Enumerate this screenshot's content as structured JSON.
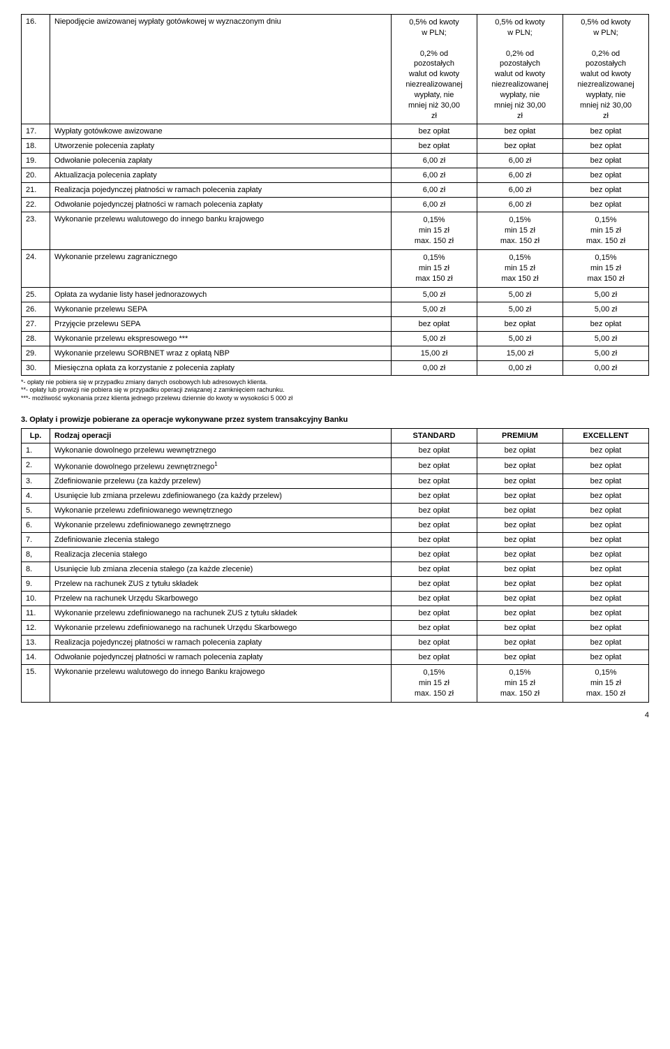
{
  "table1": {
    "rows": [
      {
        "n": "16.",
        "desc": "Niepodjęcie awizowanej wypłaty gotówkowej w wyznaczonym dniu",
        "c1": "0,5% od kwoty\nw PLN;\n\n0,2% od\npozostałych\nwalut od kwoty\nniezrealizowanej\nwypłaty, nie\nmniej niż 30,00\nzł",
        "c2": "0,5% od kwoty\nw PLN;\n\n0,2% od\npozostałych\nwalut od kwoty\nniezrealizowanej\nwypłaty, nie\nmniej niż 30,00\nzł",
        "c3": "0,5% od kwoty\nw PLN;\n\n0,2% od\npozostałych\nwalut od kwoty\nniezrealizowanej\nwypłaty, nie\nmniej niż 30,00\nzł"
      },
      {
        "n": "17.",
        "desc": "Wypłaty gotówkowe awizowane",
        "c1": "bez opłat",
        "c2": "bez opłat",
        "c3": "bez opłat"
      },
      {
        "n": "18.",
        "desc": "Utworzenie polecenia zapłaty",
        "c1": "bez opłat",
        "c2": "bez opłat",
        "c3": "bez opłat"
      },
      {
        "n": "19.",
        "desc": "Odwołanie polecenia zapłaty",
        "c1": "6,00 zł",
        "c2": "6,00 zł",
        "c3": "bez opłat"
      },
      {
        "n": "20.",
        "desc": "Aktualizacja polecenia zapłaty",
        "c1": "6,00 zł",
        "c2": "6,00 zł",
        "c3": "bez opłat"
      },
      {
        "n": "21.",
        "desc": "Realizacja pojedynczej płatności w ramach polecenia zapłaty",
        "c1": "6,00 zł",
        "c2": "6,00 zł",
        "c3": "bez opłat"
      },
      {
        "n": "22.",
        "desc": "Odwołanie pojedynczej płatności w ramach polecenia zapłaty",
        "c1": "6,00 zł",
        "c2": "6,00 zł",
        "c3": "bez opłat"
      },
      {
        "n": "23.",
        "desc": "Wykonanie przelewu walutowego do innego banku krajowego",
        "c1": "0,15%\nmin 15 zł\nmax. 150 zł",
        "c2": "0,15%\nmin 15 zł\nmax. 150 zł",
        "c3": "0,15%\nmin 15 zł\nmax. 150 zł"
      },
      {
        "n": "24.",
        "desc": "Wykonanie przelewu zagranicznego",
        "c1": "0,15%\nmin 15 zł\nmax 150 zł",
        "c2": "0,15%\nmin 15 zł\nmax 150 zł",
        "c3": "0,15%\nmin 15 zł\nmax 150 zł"
      },
      {
        "n": "25.",
        "desc": "Opłata za wydanie listy haseł jednorazowych",
        "c1": "5,00 zł",
        "c2": "5,00 zł",
        "c3": "5,00 zł"
      },
      {
        "n": "26.",
        "desc": "Wykonanie przelewu SEPA",
        "c1": "5,00 zł",
        "c2": "5,00 zł",
        "c3": "5,00 zł"
      },
      {
        "n": "27.",
        "desc": "Przyjęcie przelewu SEPA",
        "c1": "bez opłat",
        "c2": "bez opłat",
        "c3": "bez opłat"
      },
      {
        "n": "28.",
        "desc": "Wykonanie przelewu ekspresowego ***",
        "c1": "5,00 zł",
        "c2": "5,00 zł",
        "c3": "5,00 zł"
      },
      {
        "n": "29.",
        "desc": "Wykonanie przelewu  SORBNET wraz z opłatą NBP",
        "c1": "15,00 zł",
        "c2": "15,00 zł",
        "c3": "5,00 zł"
      },
      {
        "n": "30.",
        "desc": "Miesięczna opłata za korzystanie z polecenia zapłaty",
        "c1": "0,00 zł",
        "c2": "0,00 zł",
        "c3": "0,00 zł"
      }
    ]
  },
  "footnotes": [
    "*- opłaty nie pobiera się w przypadku zmiany danych osobowych lub adresowych klienta.",
    "**- opłaty lub prowizji nie pobiera się w przypadku operacji związanej z zamknięciem rachunku.",
    "***- możliwość wykonania przez klienta jednego przelewu dziennie do kwoty w wysokości 5 000 zł"
  ],
  "section3": {
    "title": "3. Opłaty i prowizje pobierane za operacje wykonywane przez system transakcyjny Banku",
    "headers": {
      "lp": "Lp.",
      "desc": "Rodzaj operacji",
      "c1": "STANDARD",
      "c2": "PREMIUM",
      "c3": "EXCELLENT"
    },
    "rows": [
      {
        "n": "1.",
        "desc": "Wykonanie dowolnego przelewu wewnętrznego",
        "c1": "bez opłat",
        "c2": "bez opłat",
        "c3": "bez opłat"
      },
      {
        "n": "2.",
        "desc": "Wykonanie dowolnego przelewu zewnętrznego",
        "sup": "1",
        "c1": "bez opłat",
        "c2": "bez opłat",
        "c3": "bez opłat"
      },
      {
        "n": "3.",
        "desc": "Zdefiniowanie przelewu (za każdy przelew)",
        "c1": "bez opłat",
        "c2": "bez opłat",
        "c3": "bez opłat"
      },
      {
        "n": "4.",
        "desc": "Usunięcie lub zmiana przelewu zdefiniowanego (za każdy przelew)",
        "c1": "bez opłat",
        "c2": "bez opłat",
        "c3": "bez opłat"
      },
      {
        "n": "5.",
        "desc": "Wykonanie przelewu zdefiniowanego wewnętrznego",
        "c1": "bez opłat",
        "c2": "bez opłat",
        "c3": "bez opłat"
      },
      {
        "n": "6.",
        "desc": "Wykonanie przelewu zdefiniowanego zewnętrznego",
        "c1": "bez opłat",
        "c2": "bez opłat",
        "c3": "bez opłat"
      },
      {
        "n": "7.",
        "desc": "Zdefiniowanie zlecenia stałego",
        "c1": "bez opłat",
        "c2": "bez opłat",
        "c3": "bez opłat"
      },
      {
        "n": "8,",
        "desc": "Realizacja zlecenia stałego",
        "c1": "bez opłat",
        "c2": "bez opłat",
        "c3": "bez opłat"
      },
      {
        "n": "8.",
        "desc": "Usunięcie lub zmiana zlecenia stałego (za każde zlecenie)",
        "c1": "bez opłat",
        "c2": "bez opłat",
        "c3": "bez opłat"
      },
      {
        "n": "9.",
        "desc": "Przelew na rachunek ZUS z tytułu składek",
        "c1": "bez opłat",
        "c2": "bez opłat",
        "c3": "bez opłat"
      },
      {
        "n": "10.",
        "desc": "Przelew na rachunek Urzędu Skarbowego",
        "c1": "bez opłat",
        "c2": "bez opłat",
        "c3": "bez opłat"
      },
      {
        "n": "11.",
        "desc": "Wykonanie przelewu zdefiniowanego na rachunek ZUS z tytułu składek",
        "c1": "bez opłat",
        "c2": "bez opłat",
        "c3": "bez opłat"
      },
      {
        "n": "12.",
        "desc": "Wykonanie przelewu zdefiniowanego na rachunek Urzędu Skarbowego",
        "c1": "bez opłat",
        "c2": "bez opłat",
        "c3": "bez opłat"
      },
      {
        "n": "13.",
        "desc": "Realizacja pojedynczej płatności w ramach polecenia zapłaty",
        "c1": "bez opłat",
        "c2": "bez opłat",
        "c3": "bez opłat"
      },
      {
        "n": "14.",
        "desc": "Odwołanie pojedynczej płatności w ramach polecenia zapłaty",
        "c1": "bez opłat",
        "c2": "bez opłat",
        "c3": "bez opłat"
      },
      {
        "n": "15.",
        "desc": "Wykonanie przelewu walutowego do innego Banku krajowego",
        "c1": "0,15%\nmin 15 zł\nmax. 150 zł",
        "c2": "0,15%\nmin 15 zł\nmax. 150 zł",
        "c3": "0,15%\nmin 15 zł\nmax. 150 zł"
      }
    ]
  },
  "pageNumber": "4"
}
